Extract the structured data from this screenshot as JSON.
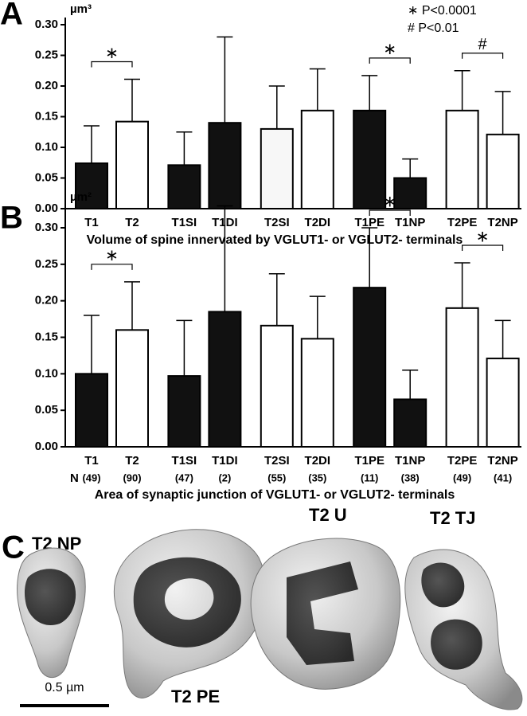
{
  "chart_data": [
    {
      "type": "bar",
      "panel_label": "A",
      "y_unit": "µm³",
      "legend": [
        "∗ P<0.0001",
        "# P<0.01"
      ],
      "categories": [
        "T1",
        "T2",
        "T1SI",
        "T1DI",
        "T2SI",
        "T2DI",
        "T1PE",
        "T1NP",
        "T2PE",
        "T2NP"
      ],
      "values": [
        0.074,
        0.142,
        0.071,
        0.14,
        0.13,
        0.16,
        0.16,
        0.05,
        0.16,
        0.121
      ],
      "errors": [
        0.061,
        0.069,
        0.054,
        0.14,
        0.07,
        0.068,
        0.057,
        0.031,
        0.065,
        0.07
      ],
      "colors": [
        "#111111",
        "#ffffff",
        "#111111",
        "#111111",
        "#f7f7f7",
        "#ffffff",
        "#111111",
        "#111111",
        "#ffffff",
        "#ffffff"
      ],
      "markers": [
        "∗",
        null,
        null,
        null,
        null,
        null,
        "∗",
        null,
        "#",
        null
      ],
      "xlabel": "Volume of spine innervated by VGLUT1- or VGLUT2- terminals",
      "ylim": [
        0,
        0.3
      ],
      "yticks": [
        {
          "value": 0,
          "label": "0.00"
        },
        0.05,
        {
          "value": 0.1,
          "label": "0.10"
        },
        0.15,
        {
          "value": 0.2,
          "label": "0.20"
        },
        0.25,
        {
          "value": 0.3,
          "label": "0.30"
        }
      ]
    },
    {
      "type": "bar",
      "panel_label": "B",
      "y_unit": "µm²",
      "categories": [
        "T1",
        "T2",
        "T1SI",
        "T1DI",
        "T2SI",
        "T2DI",
        "T1PE",
        "T1NP",
        "T2PE",
        "T2NP"
      ],
      "values": [
        0.1,
        0.16,
        0.097,
        0.185,
        0.166,
        0.148,
        0.218,
        0.065,
        0.19,
        0.121
      ],
      "errors": [
        0.08,
        0.066,
        0.076,
        0.145,
        0.071,
        0.058,
        0.082,
        0.04,
        0.062,
        0.052
      ],
      "colors": [
        "#111111",
        "#ffffff",
        "#111111",
        "#111111",
        "#ffffff",
        "#ffffff",
        "#111111",
        "#111111",
        "#ffffff",
        "#ffffff"
      ],
      "markers": [
        "∗",
        null,
        null,
        null,
        null,
        null,
        "∗",
        null,
        "∗",
        null
      ],
      "n_header": "N",
      "n_labels": [
        "(49)",
        "(90)",
        "(47)",
        "(2)",
        "(55)",
        "(35)",
        "(11)",
        "(38)",
        "(49)",
        "(41)"
      ],
      "xlabel": "Area of synaptic junction of VGLUT1- or VGLUT2- terminals",
      "ylim": [
        0,
        0.33
      ],
      "yticks": [
        {
          "value": 0,
          "label": "0.00"
        },
        0.05,
        {
          "value": 0.1,
          "label": "0.10"
        },
        0.15,
        {
          "value": 0.2,
          "label": "0.20"
        },
        0.25,
        {
          "value": 0.3,
          "label": "0.30"
        }
      ]
    }
  ],
  "panel_c": {
    "panel_label": "C",
    "labels": [
      "T2 NP",
      "T2 PE",
      "T2 U",
      "T2 TJ"
    ],
    "scale_bar_label": "0.5 µm"
  }
}
